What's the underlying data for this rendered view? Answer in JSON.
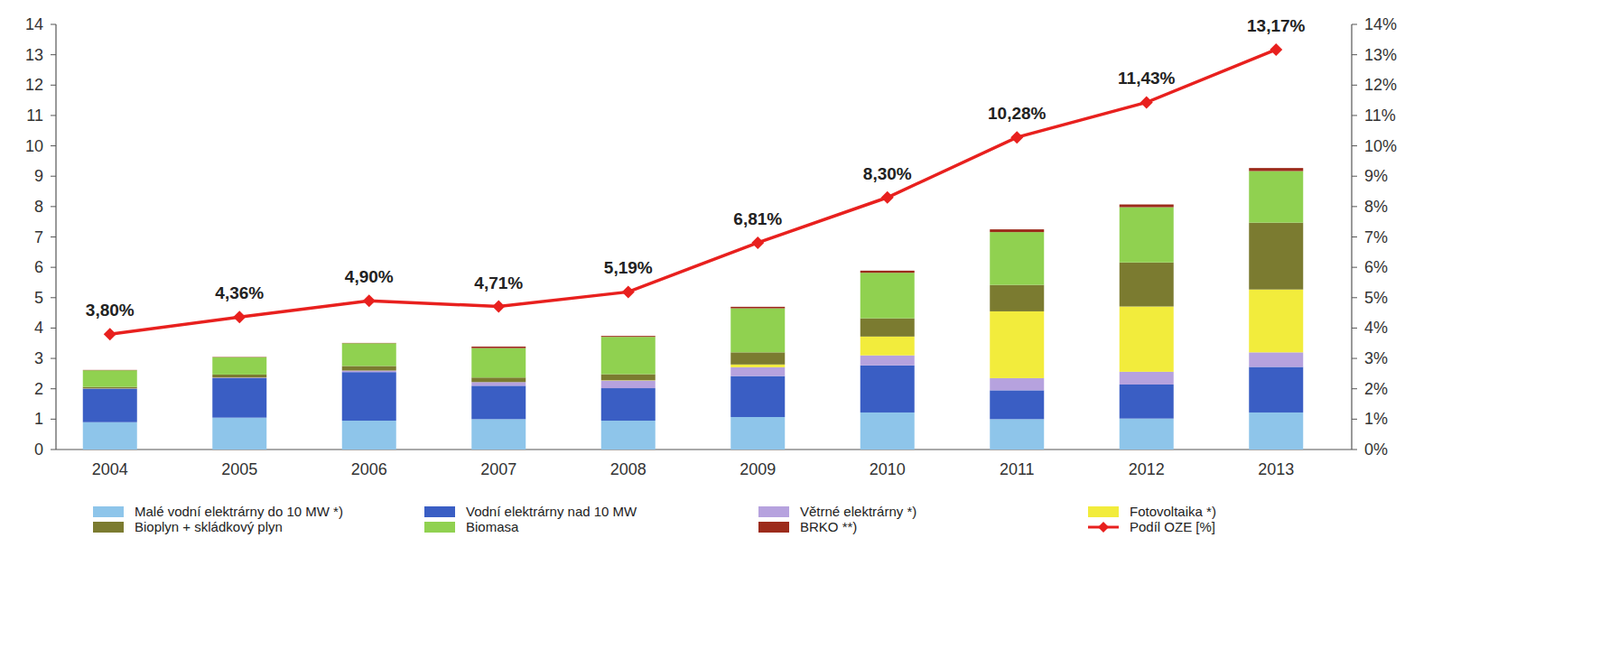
{
  "chart_data": {
    "type": "bar",
    "stacked": true,
    "grid": false,
    "legend": "bottom",
    "categories": [
      "2004",
      "2005",
      "2006",
      "2007",
      "2008",
      "2009",
      "2010",
      "2011",
      "2012",
      "2013"
    ],
    "ylim": [
      0,
      14
    ],
    "yticks": [
      0,
      1,
      2,
      3,
      4,
      5,
      6,
      7,
      8,
      9,
      10,
      11,
      12,
      13,
      14
    ],
    "y2lim": [
      0,
      14
    ],
    "y2ticks": [
      {
        "value": 0,
        "label": "0%"
      },
      {
        "value": 1,
        "label": "1%"
      },
      {
        "value": 2,
        "label": "2%"
      },
      {
        "value": 3,
        "label": "3%"
      },
      {
        "value": 4,
        "label": "4%"
      },
      {
        "value": 5,
        "label": "5%"
      },
      {
        "value": 6,
        "label": "6%"
      },
      {
        "value": 7,
        "label": "7%"
      },
      {
        "value": 8,
        "label": "8%"
      },
      {
        "value": 9,
        "label": "9%"
      },
      {
        "value": 10,
        "label": "10%"
      },
      {
        "value": 11,
        "label": "11%"
      },
      {
        "value": 12,
        "label": "12%"
      },
      {
        "value": 13,
        "label": "13%"
      },
      {
        "value": 14,
        "label": "14%"
      }
    ],
    "series": [
      {
        "name": "Malé vodní elektrárny do 10 MW *)",
        "type": "bar",
        "color": "#8ec5ea",
        "values": [
          0.9,
          1.05,
          0.95,
          1.0,
          0.95,
          1.07,
          1.22,
          1.0,
          1.02,
          1.22
        ]
      },
      {
        "name": "Vodní elektrárny nad 10 MW",
        "type": "bar",
        "color": "#3a5ec4",
        "values": [
          1.1,
          1.3,
          1.6,
          1.1,
          1.07,
          1.35,
          1.55,
          0.95,
          1.12,
          1.5
        ]
      },
      {
        "name": "Větrné elektrárny *)",
        "type": "bar",
        "color": "#b6a2de",
        "values": [
          0.01,
          0.02,
          0.05,
          0.12,
          0.25,
          0.29,
          0.33,
          0.4,
          0.42,
          0.48
        ]
      },
      {
        "name": "Fotovoltaika *)",
        "type": "bar",
        "color": "#f2ec3c",
        "values": [
          0.0,
          0.0,
          0.0,
          0.0,
          0.01,
          0.09,
          0.62,
          2.2,
          2.15,
          2.07
        ]
      },
      {
        "name": "Bioplyn + skládkový plyn",
        "type": "bar",
        "color": "#7b7b30",
        "values": [
          0.05,
          0.1,
          0.15,
          0.15,
          0.2,
          0.4,
          0.6,
          0.87,
          1.45,
          2.2
        ]
      },
      {
        "name": "Biomasa",
        "type": "bar",
        "color": "#90d150",
        "values": [
          0.55,
          0.57,
          0.75,
          0.97,
          1.23,
          1.45,
          1.5,
          1.74,
          1.82,
          1.7
        ]
      },
      {
        "name": "BRKO **)",
        "type": "bar",
        "color": "#9c2b1b",
        "values": [
          0.01,
          0.01,
          0.01,
          0.05,
          0.03,
          0.05,
          0.07,
          0.09,
          0.09,
          0.1
        ]
      },
      {
        "name": "Podíl OZE [%]",
        "type": "line",
        "axis": "y2",
        "color": "#e8201e",
        "marker": "diamond",
        "data_labels": true,
        "values": [
          3.8,
          4.36,
          4.9,
          4.71,
          5.19,
          6.81,
          8.3,
          10.28,
          11.43,
          13.17
        ],
        "value_labels": [
          "3,80%",
          "4,36%",
          "4,90%",
          "4,71%",
          "5,19%",
          "6,81%",
          "8,30%",
          "10,28%",
          "11,43%",
          "13,17%"
        ]
      }
    ]
  }
}
